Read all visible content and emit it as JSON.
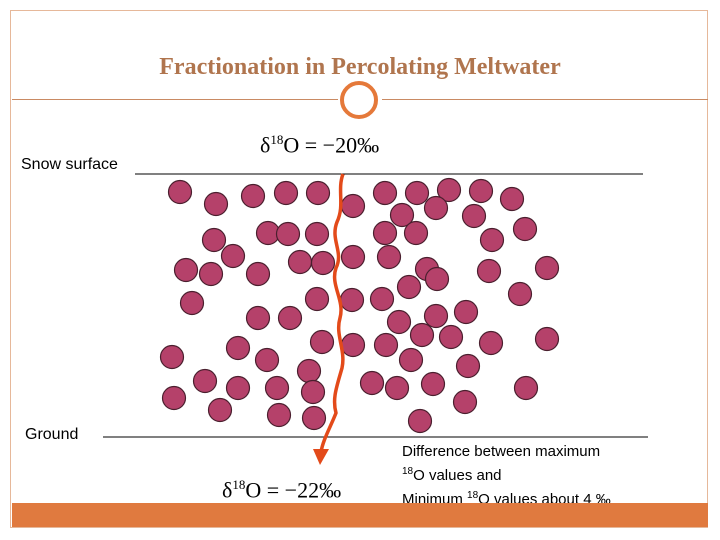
{
  "title": "Fractionation in Percolating Meltwater",
  "snow_surface_label": "Snow surface",
  "ground_label": "Ground",
  "top_delta": {
    "symbol": "δ",
    "mass": "18",
    "rest": "O = −20‰"
  },
  "bottom_delta": {
    "symbol": "δ",
    "mass": "18",
    "rest": "O = −22‰"
  },
  "note": {
    "line1": "Difference between maximum",
    "line2_sup": "18",
    "line2_rest": "O values and",
    "line3_pre": "Minimum ",
    "line3_sup": "18",
    "line3_rest": "O values about 4 ‰"
  },
  "colors": {
    "grain_fill": "#b5416a",
    "grain_stroke": "#4a1f2e",
    "meltwater_path": "#e34a1a",
    "accent": "#e07a3f"
  }
}
